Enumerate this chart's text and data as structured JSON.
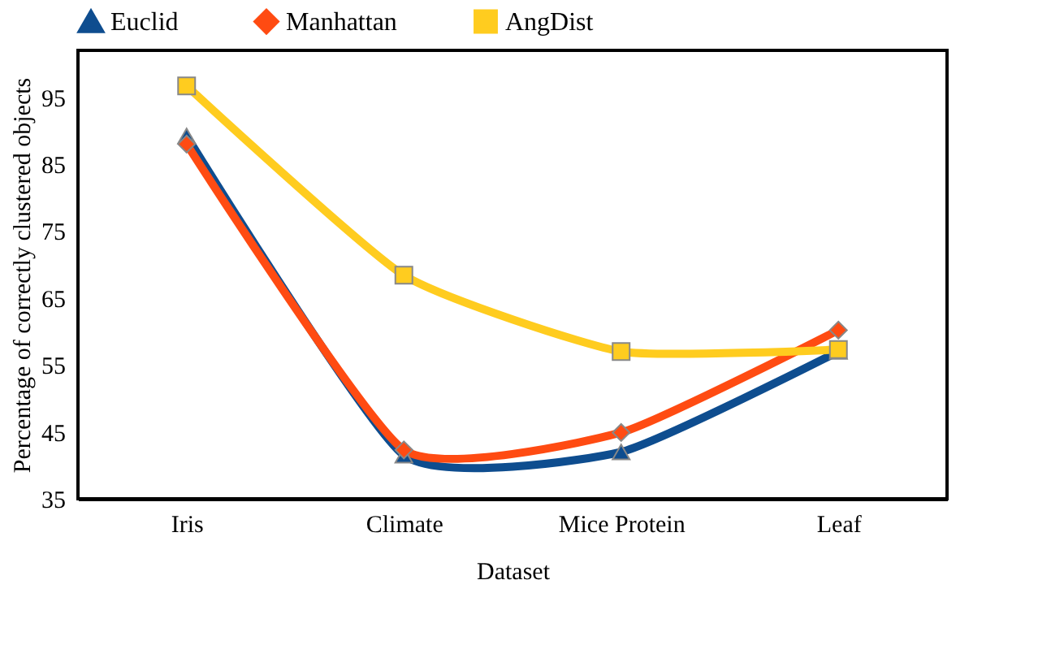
{
  "chart_data": {
    "type": "line",
    "xlabel": "Dataset",
    "ylabel": "Percentage of correctly clustered objects",
    "categories": [
      "Iris",
      "Climate",
      "Mice Protein",
      "Leaf"
    ],
    "series": [
      {
        "name": "Euclid",
        "color": "#0e4d8f",
        "marker": "triangle",
        "values": [
          89.2,
          41.5,
          42,
          57
        ]
      },
      {
        "name": "Manhattan",
        "color": "#ff4b12",
        "marker": "diamond",
        "values": [
          88,
          42.3,
          44.9,
          60.2
        ]
      },
      {
        "name": "AngDist",
        "color": "#ffcc1f",
        "marker": "square",
        "values": [
          96.7,
          68.4,
          57,
          57.3
        ]
      }
    ],
    "ylim": [
      35,
      102
    ],
    "yticks": [
      35,
      45,
      55,
      65,
      75,
      85,
      95
    ],
    "grid": false,
    "legend": "top",
    "line_style": "solid"
  }
}
